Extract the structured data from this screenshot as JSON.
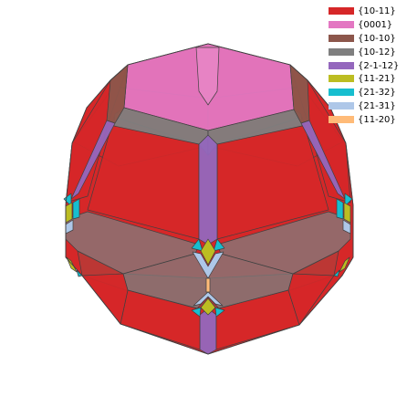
{
  "legend": {
    "items": [
      {
        "label": "{10-11}",
        "color": "#d62728"
      },
      {
        "label": "{0001}",
        "color": "#e377c2"
      },
      {
        "label": "{10-10}",
        "color": "#8c564b"
      },
      {
        "label": "{10-12}",
        "color": "#7f7f7f"
      },
      {
        "label": "{2-1-12}",
        "color": "#9467bd"
      },
      {
        "label": "{11-21}",
        "color": "#bcbd22"
      },
      {
        "label": "{21-32}",
        "color": "#17becf"
      },
      {
        "label": "{21-31}",
        "color": "#aec7e8"
      },
      {
        "label": "{11-20}",
        "color": "#ffbb78"
      }
    ]
  },
  "edge_color": "#404040"
}
